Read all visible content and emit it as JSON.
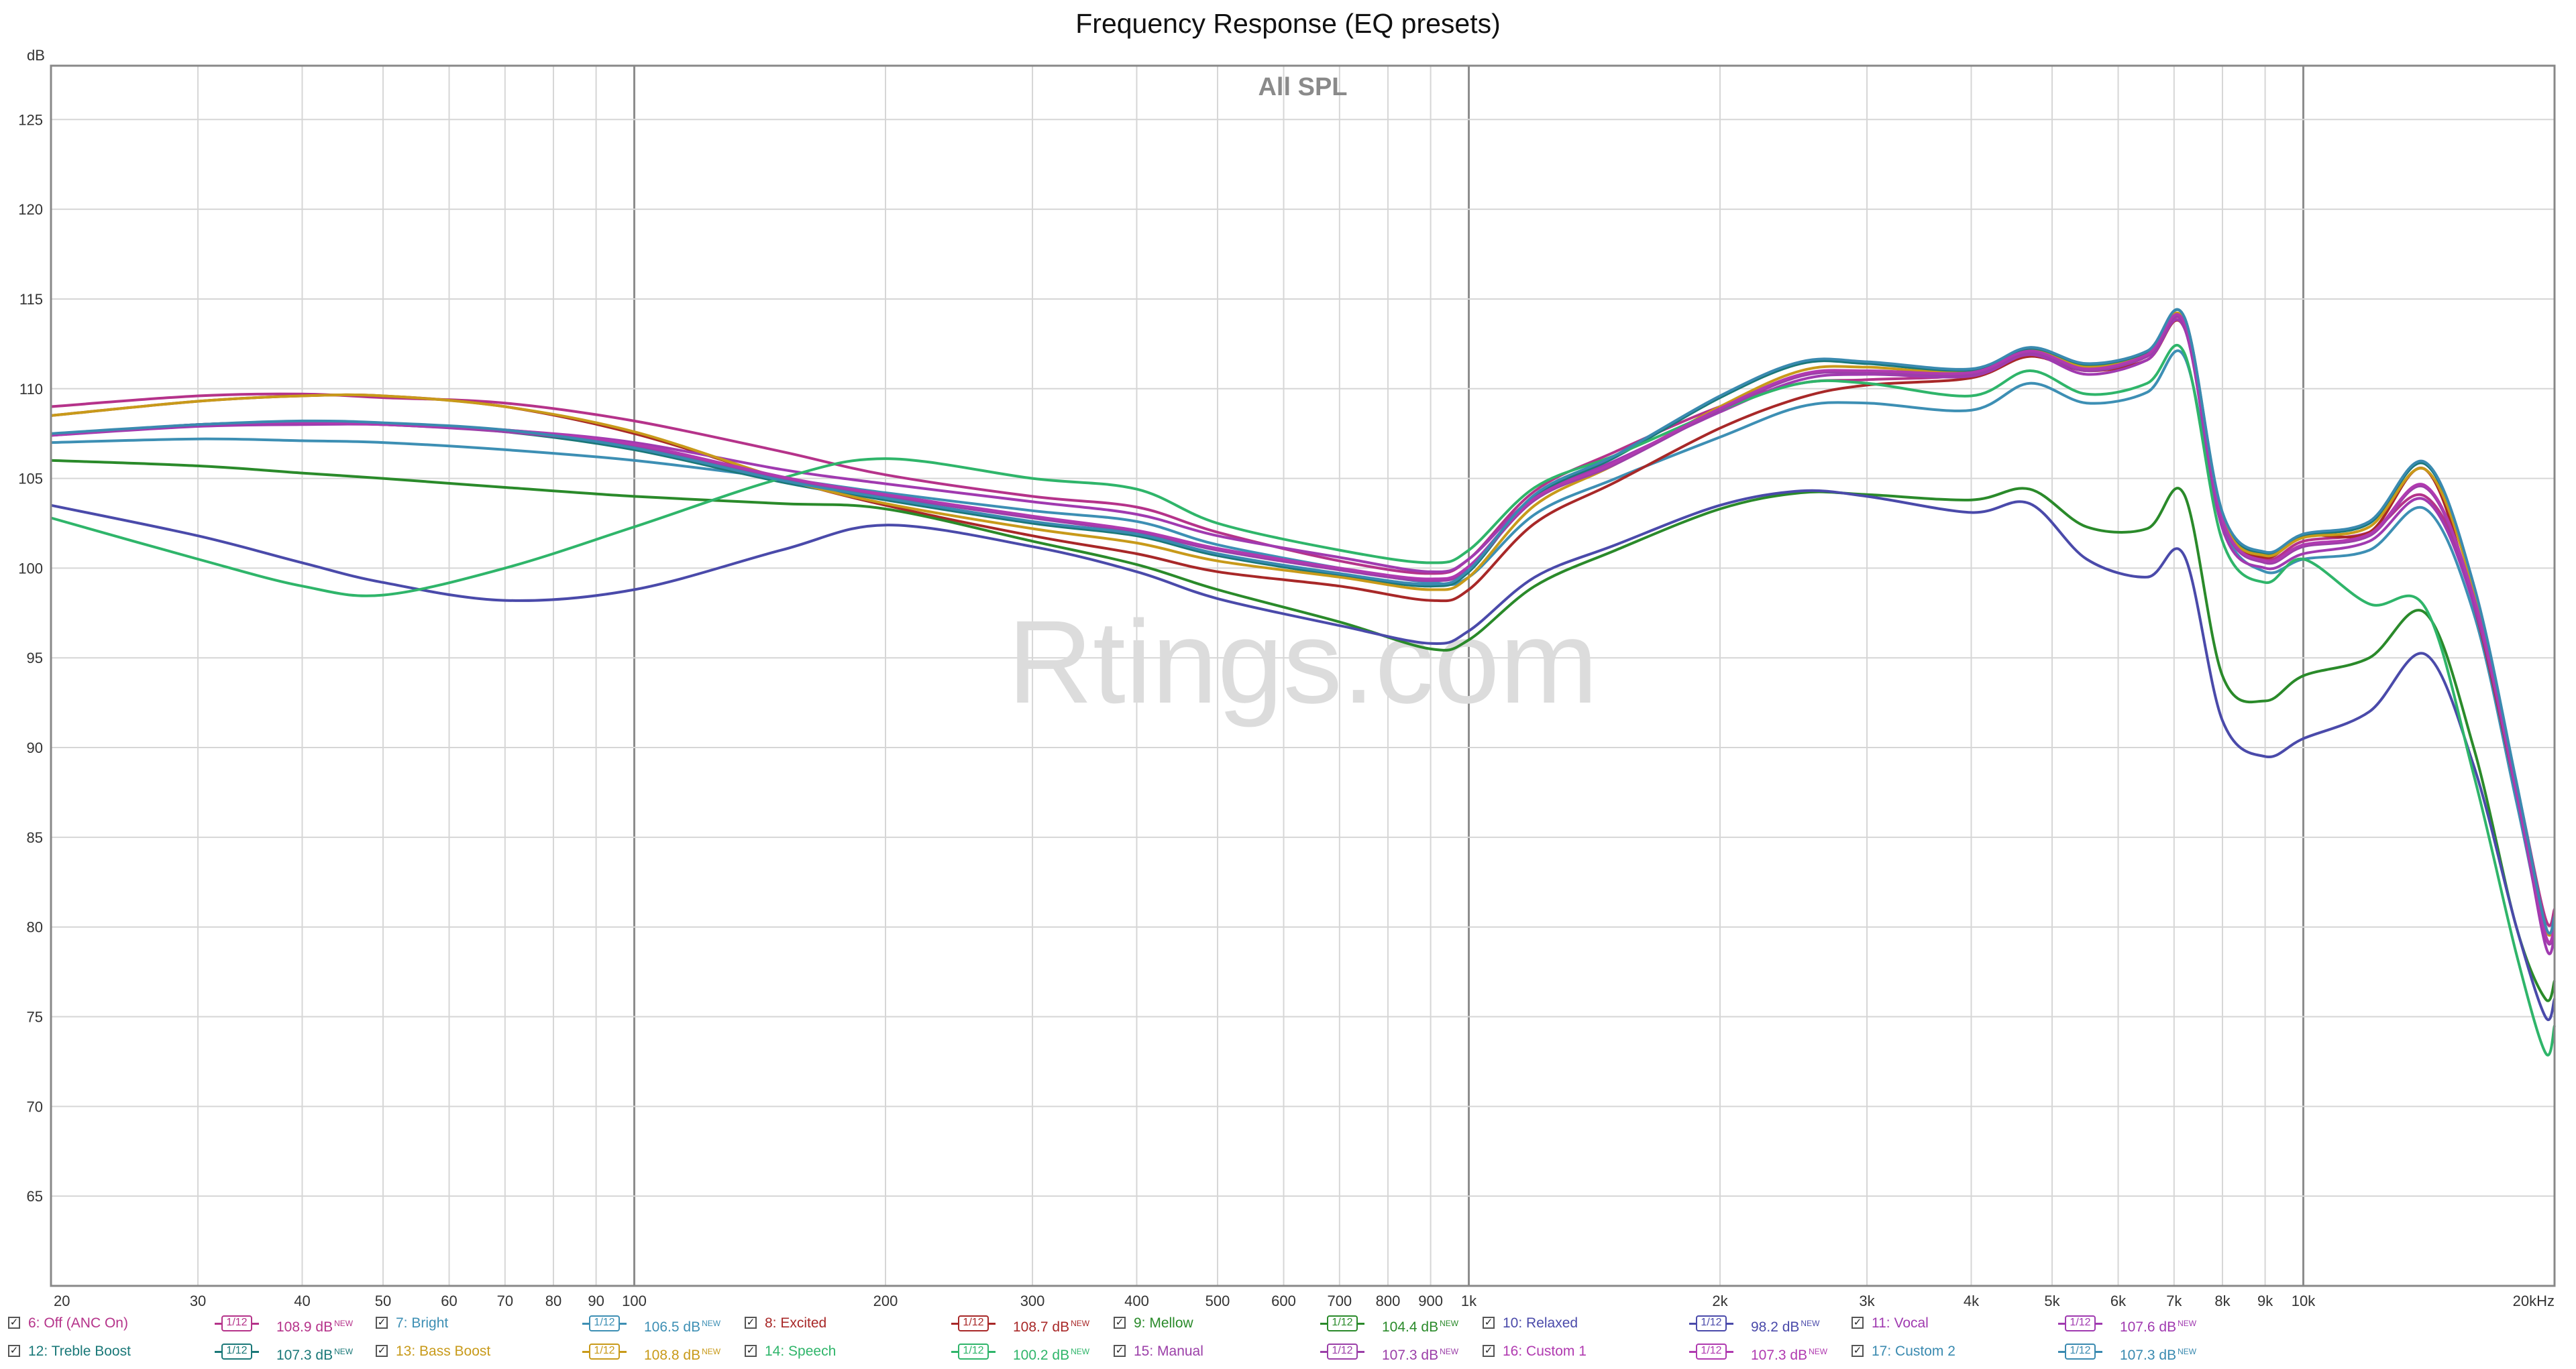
{
  "chart_data": {
    "type": "line",
    "title": "Frequency Response (EQ presets)",
    "plot_label": "All SPL",
    "watermark": "Rtings.com",
    "ylabel": "dB",
    "xlabel": "",
    "x_scale": "log",
    "xlim": [
      20,
      20000
    ],
    "ylim": [
      60,
      128
    ],
    "grid": true,
    "x_ticks": [
      {
        "v": 20,
        "label": "20"
      },
      {
        "v": 30,
        "label": "30"
      },
      {
        "v": 40,
        "label": "40"
      },
      {
        "v": 50,
        "label": "50"
      },
      {
        "v": 60,
        "label": "60"
      },
      {
        "v": 70,
        "label": "70"
      },
      {
        "v": 80,
        "label": "80"
      },
      {
        "v": 90,
        "label": "90"
      },
      {
        "v": 100,
        "label": "100"
      },
      {
        "v": 200,
        "label": "200"
      },
      {
        "v": 300,
        "label": "300"
      },
      {
        "v": 400,
        "label": "400"
      },
      {
        "v": 500,
        "label": "500"
      },
      {
        "v": 600,
        "label": "600"
      },
      {
        "v": 700,
        "label": "700"
      },
      {
        "v": 800,
        "label": "800"
      },
      {
        "v": 900,
        "label": "900"
      },
      {
        "v": 1000,
        "label": "1k"
      },
      {
        "v": 2000,
        "label": "2k"
      },
      {
        "v": 3000,
        "label": "3k"
      },
      {
        "v": 4000,
        "label": "4k"
      },
      {
        "v": 5000,
        "label": "5k"
      },
      {
        "v": 6000,
        "label": "6k"
      },
      {
        "v": 7000,
        "label": "7k"
      },
      {
        "v": 8000,
        "label": "8k"
      },
      {
        "v": 9000,
        "label": "9k"
      },
      {
        "v": 10000,
        "label": "10k"
      },
      {
        "v": 20000,
        "label": "20kHz"
      }
    ],
    "y_ticks": [
      65,
      70,
      75,
      80,
      85,
      90,
      95,
      100,
      105,
      110,
      115,
      120,
      125
    ],
    "legend_position": "bottom",
    "series": [
      {
        "name": "6: Off (ANC On)",
        "spl": "108.9 dB",
        "smoothing": "1/12",
        "color": "#b5338a",
        "x": [
          20,
          30,
          40,
          50,
          70,
          100,
          150,
          200,
          300,
          400,
          500,
          700,
          900,
          1000,
          1200,
          1500,
          2000,
          2500,
          3000,
          4000,
          4700,
          5500,
          6500,
          7200,
          8000,
          9000,
          10000,
          12000,
          14000,
          16000,
          18000,
          19500,
          20000
        ],
        "y": [
          109.0,
          109.6,
          109.7,
          109.5,
          109.2,
          108.2,
          106.5,
          105.2,
          104.0,
          103.4,
          102.0,
          100.4,
          99.7,
          100.5,
          104.3,
          106.5,
          109.0,
          110.3,
          110.5,
          110.8,
          112.0,
          111.0,
          111.8,
          113.6,
          103.0,
          100.5,
          101.5,
          102.0,
          104.0,
          98.5,
          88.0,
          80.5,
          81.0
        ]
      },
      {
        "name": "7: Bright",
        "spl": "106.5 dB",
        "smoothing": "1/12",
        "color": "#3d8fb4",
        "x": [
          20,
          30,
          40,
          50,
          70,
          100,
          150,
          200,
          300,
          400,
          500,
          700,
          900,
          1000,
          1200,
          1500,
          2000,
          2500,
          3000,
          4000,
          4700,
          5500,
          6500,
          7200,
          8000,
          9000,
          10000,
          12000,
          14000,
          16000,
          18000,
          19500,
          20000
        ],
        "y": [
          107.0,
          107.2,
          107.1,
          107.0,
          106.6,
          106.0,
          105.0,
          104.2,
          103.2,
          102.6,
          101.3,
          100.0,
          99.2,
          99.5,
          103.0,
          105.0,
          107.3,
          109.0,
          109.2,
          108.8,
          110.3,
          109.2,
          109.8,
          111.8,
          102.3,
          99.8,
          100.5,
          101.0,
          103.3,
          97.5,
          87.0,
          79.5,
          80.0
        ]
      },
      {
        "name": "8: Excited",
        "spl": "108.7 dB",
        "smoothing": "1/12",
        "color": "#a82828",
        "x": [
          20,
          30,
          40,
          50,
          70,
          100,
          150,
          200,
          300,
          400,
          500,
          700,
          900,
          1000,
          1200,
          1500,
          2000,
          2500,
          3000,
          4000,
          4700,
          5500,
          6500,
          7200,
          8000,
          9000,
          10000,
          12000,
          14000,
          16000,
          18000,
          19500,
          20000
        ],
        "y": [
          108.5,
          109.3,
          109.6,
          109.6,
          109.0,
          107.5,
          105.0,
          103.5,
          101.8,
          100.8,
          99.8,
          99.0,
          98.2,
          98.8,
          102.5,
          104.8,
          107.8,
          109.5,
          110.2,
          110.6,
          111.8,
          111.0,
          111.6,
          113.4,
          102.7,
          100.6,
          101.8,
          102.0,
          105.5,
          98.0,
          87.5,
          80.0,
          80.5
        ]
      },
      {
        "name": "9: Mellow",
        "spl": "104.4 dB",
        "smoothing": "1/12",
        "color": "#2a8a2a",
        "x": [
          20,
          30,
          40,
          50,
          70,
          100,
          150,
          200,
          300,
          400,
          500,
          700,
          900,
          1000,
          1200,
          1500,
          2000,
          2500,
          3000,
          4000,
          4700,
          5500,
          6500,
          7200,
          8000,
          9000,
          10000,
          12000,
          14000,
          16000,
          18000,
          19500,
          20000
        ],
        "y": [
          106.0,
          105.7,
          105.3,
          105.0,
          104.5,
          104.0,
          103.6,
          103.3,
          101.5,
          100.2,
          98.8,
          97.0,
          95.5,
          96.0,
          99.0,
          101.0,
          103.3,
          104.2,
          104.1,
          103.8,
          104.4,
          102.3,
          102.2,
          104.1,
          94.0,
          92.6,
          94.0,
          95.0,
          97.5,
          90.0,
          80.0,
          76.0,
          77.0
        ]
      },
      {
        "name": "10: Relaxed",
        "spl": "98.2 dB",
        "smoothing": "1/12",
        "color": "#4a4aaa",
        "x": [
          20,
          30,
          40,
          50,
          70,
          100,
          150,
          200,
          300,
          400,
          500,
          700,
          900,
          1000,
          1200,
          1500,
          2000,
          2500,
          3000,
          4000,
          4700,
          5500,
          6500,
          7200,
          8000,
          9000,
          10000,
          12000,
          14000,
          16000,
          18000,
          19500,
          20000
        ],
        "y": [
          103.5,
          101.8,
          100.3,
          99.2,
          98.2,
          98.8,
          101.0,
          102.4,
          101.2,
          99.8,
          98.3,
          96.8,
          95.8,
          96.5,
          99.5,
          101.3,
          103.5,
          104.3,
          104.0,
          103.1,
          103.6,
          100.5,
          99.5,
          100.7,
          91.5,
          89.5,
          90.5,
          92.0,
          95.2,
          89.0,
          80.0,
          75.0,
          76.0
        ]
      },
      {
        "name": "11: Vocal",
        "spl": "107.6 dB",
        "smoothing": "1/12",
        "color": "#a03ab0",
        "x": [
          20,
          30,
          40,
          50,
          70,
          100,
          150,
          200,
          300,
          400,
          500,
          700,
          900,
          1000,
          1200,
          1500,
          2000,
          2500,
          3000,
          4000,
          4700,
          5500,
          6500,
          7200,
          8000,
          9000,
          10000,
          12000,
          14000,
          16000,
          18000,
          19500,
          20000
        ],
        "y": [
          107.4,
          107.9,
          108.0,
          108.0,
          107.7,
          107.0,
          105.5,
          104.7,
          103.7,
          103.0,
          101.8,
          100.6,
          99.8,
          100.5,
          104.0,
          106.0,
          108.7,
          110.5,
          110.8,
          110.7,
          111.9,
          110.8,
          111.6,
          113.4,
          102.2,
          100.0,
          100.8,
          101.5,
          103.8,
          98.0,
          87.5,
          79.0,
          79.5
        ]
      },
      {
        "name": "12: Treble Boost",
        "spl": "107.3 dB",
        "smoothing": "1/12",
        "color": "#1a7878",
        "x": [
          20,
          30,
          40,
          50,
          70,
          100,
          150,
          200,
          300,
          400,
          500,
          700,
          900,
          1000,
          1200,
          1500,
          2000,
          2500,
          3000,
          4000,
          4700,
          5500,
          6500,
          7200,
          8000,
          9000,
          10000,
          12000,
          14000,
          16000,
          18000,
          19500,
          20000
        ],
        "y": [
          107.4,
          108.0,
          108.1,
          108.0,
          107.6,
          106.6,
          104.8,
          103.8,
          102.5,
          101.8,
          100.7,
          99.6,
          99.0,
          99.8,
          104.0,
          106.2,
          109.5,
          111.4,
          111.4,
          111.0,
          112.2,
          111.3,
          112.0,
          114.0,
          103.0,
          100.8,
          101.8,
          102.5,
          105.8,
          99.0,
          88.0,
          80.0,
          80.5
        ]
      },
      {
        "name": "13: Bass Boost",
        "spl": "108.8 dB",
        "smoothing": "1/12",
        "color": "#c89a1a",
        "x": [
          20,
          30,
          40,
          50,
          70,
          100,
          150,
          200,
          300,
          400,
          500,
          700,
          900,
          1000,
          1200,
          1500,
          2000,
          2500,
          3000,
          4000,
          4700,
          5500,
          6500,
          7200,
          8000,
          9000,
          10000,
          12000,
          14000,
          16000,
          18000,
          19500,
          20000
        ],
        "y": [
          108.5,
          109.3,
          109.6,
          109.6,
          109.0,
          107.6,
          105.0,
          103.6,
          102.2,
          101.4,
          100.4,
          99.5,
          98.8,
          99.5,
          103.5,
          105.8,
          109.0,
          111.0,
          111.2,
          110.9,
          112.1,
          111.2,
          111.9,
          113.8,
          102.8,
          100.7,
          101.7,
          102.3,
          105.5,
          98.8,
          88.0,
          80.0,
          80.5
        ]
      },
      {
        "name": "14: Speech",
        "spl": "100.2 dB",
        "smoothing": "1/12",
        "color": "#2fb56a",
        "x": [
          20,
          30,
          40,
          50,
          70,
          100,
          150,
          200,
          300,
          400,
          500,
          700,
          900,
          1000,
          1200,
          1500,
          2000,
          2500,
          3000,
          4000,
          4700,
          5500,
          6500,
          7200,
          8000,
          9000,
          10000,
          12000,
          14000,
          16000,
          18000,
          19500,
          20000
        ],
        "y": [
          102.8,
          100.5,
          99.0,
          98.5,
          100.0,
          102.3,
          105.0,
          106.1,
          105.0,
          104.4,
          102.5,
          101.0,
          100.3,
          101.0,
          104.5,
          106.3,
          108.8,
          110.3,
          110.3,
          109.6,
          111.0,
          109.7,
          110.3,
          112.0,
          101.5,
          99.2,
          100.5,
          98.0,
          97.8,
          88.5,
          78.5,
          73.0,
          74.5
        ]
      },
      {
        "name": "15: Manual",
        "spl": "107.3 dB",
        "smoothing": "1/12",
        "color": "#9b3fa8",
        "x": [
          20,
          30,
          40,
          50,
          70,
          100,
          150,
          200,
          300,
          400,
          500,
          700,
          900,
          1000,
          1200,
          1500,
          2000,
          2500,
          3000,
          4000,
          4700,
          5500,
          6500,
          7200,
          8000,
          9000,
          10000,
          12000,
          14000,
          16000,
          18000,
          19500,
          20000
        ],
        "y": [
          107.4,
          108.0,
          108.1,
          108.0,
          107.6,
          106.8,
          105.0,
          104.0,
          102.8,
          102.0,
          101.0,
          99.9,
          99.3,
          100.0,
          103.8,
          105.8,
          108.8,
          110.7,
          110.9,
          110.8,
          112.0,
          111.0,
          111.8,
          113.6,
          102.6,
          100.3,
          101.2,
          101.8,
          104.5,
          98.3,
          87.5,
          79.5,
          80.0
        ]
      },
      {
        "name": "16: Custom 1",
        "spl": "107.3 dB",
        "smoothing": "1/12",
        "color": "#b03ab0",
        "x": [
          20,
          30,
          40,
          50,
          70,
          100,
          150,
          200,
          300,
          400,
          500,
          700,
          900,
          1000,
          1200,
          1500,
          2000,
          2500,
          3000,
          4000,
          4700,
          5500,
          6500,
          7200,
          8000,
          9000,
          10000,
          12000,
          14000,
          16000,
          18000,
          19500,
          20000
        ],
        "y": [
          107.4,
          108.0,
          108.1,
          108.0,
          107.7,
          106.9,
          105.1,
          104.1,
          102.9,
          102.1,
          101.1,
          100.0,
          99.4,
          100.1,
          103.9,
          105.9,
          108.9,
          110.8,
          111.0,
          110.9,
          112.1,
          111.1,
          111.9,
          113.7,
          102.7,
          100.4,
          101.3,
          101.9,
          104.6,
          98.4,
          87.6,
          79.6,
          80.1
        ]
      },
      {
        "name": "17: Custom 2",
        "spl": "107.3 dB",
        "smoothing": "1/12",
        "color": "#3a8ab0",
        "x": [
          20,
          30,
          40,
          50,
          70,
          100,
          150,
          200,
          300,
          400,
          500,
          700,
          900,
          1000,
          1200,
          1500,
          2000,
          2500,
          3000,
          4000,
          4700,
          5500,
          6500,
          7200,
          8000,
          9000,
          10000,
          12000,
          14000,
          16000,
          18000,
          19500,
          20000
        ],
        "y": [
          107.5,
          108.0,
          108.2,
          108.1,
          107.7,
          106.7,
          104.9,
          103.9,
          102.6,
          101.9,
          100.8,
          99.7,
          99.1,
          99.9,
          104.1,
          106.3,
          109.6,
          111.5,
          111.5,
          111.1,
          112.3,
          111.4,
          112.1,
          114.0,
          103.1,
          100.9,
          101.9,
          102.6,
          105.9,
          99.1,
          88.1,
          80.1,
          80.6
        ]
      }
    ]
  }
}
